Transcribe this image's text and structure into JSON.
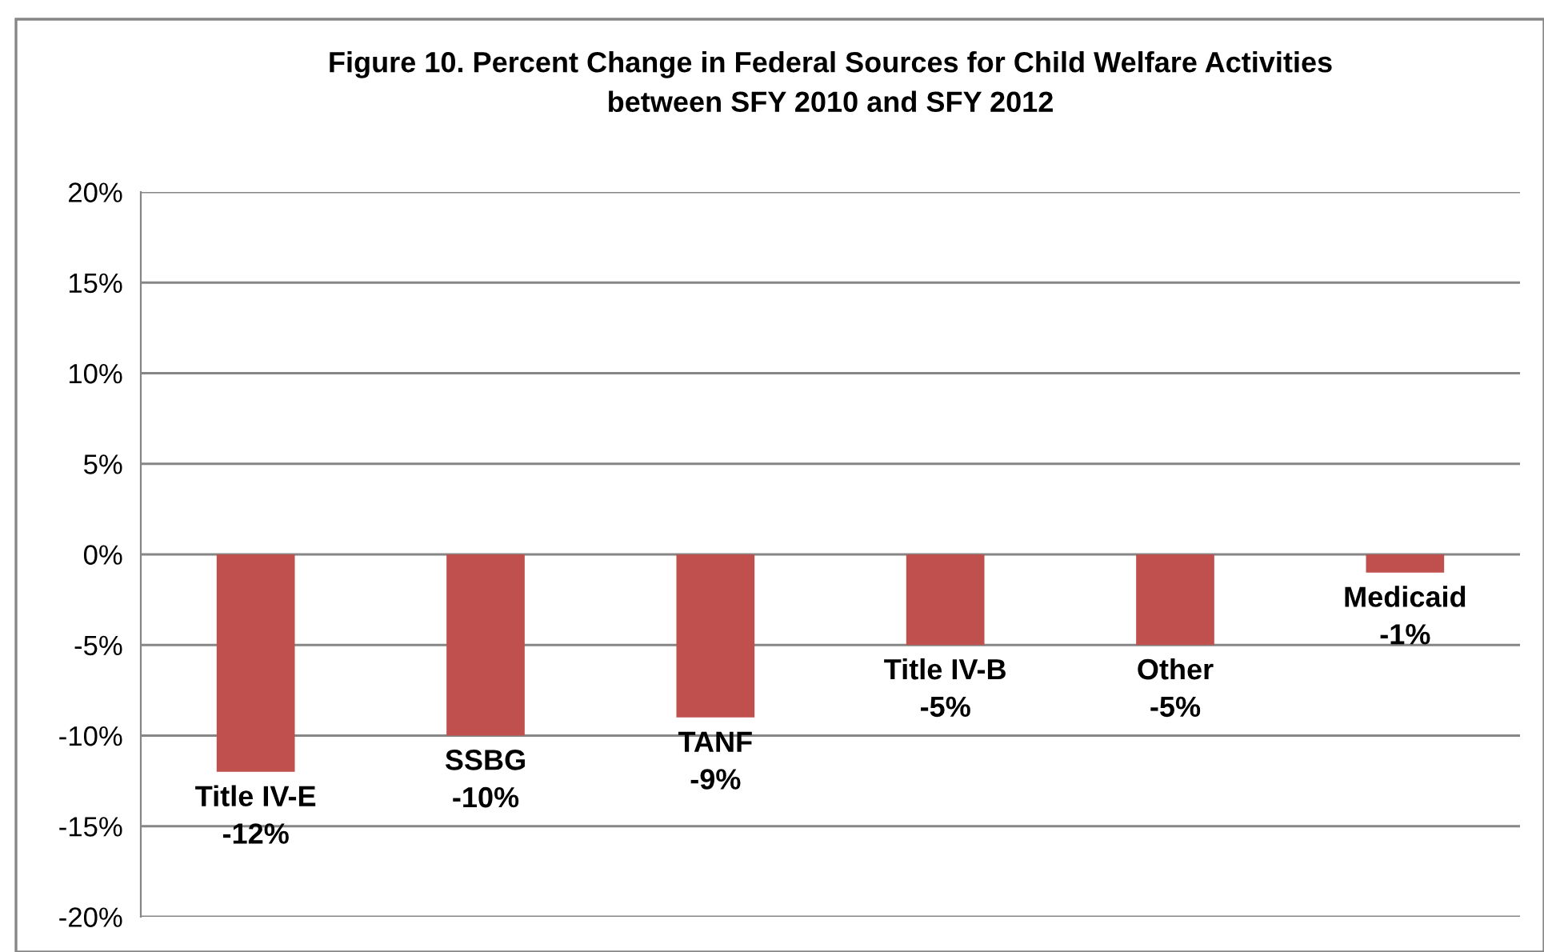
{
  "chart_data": {
    "type": "bar",
    "title": "Figure 10. Percent Change in Federal Sources for Child Welfare Activities\nbetween SFY 2010 and SFY 2012",
    "categories": [
      "Title IV-E",
      "SSBG",
      "TANF",
      "Title IV-B",
      "Other",
      "Medicaid"
    ],
    "values": [
      -12,
      -10,
      -9,
      -5,
      -5,
      -1
    ],
    "value_labels": [
      "-12%",
      "-10%",
      "-9%",
      "-5%",
      "-5%",
      "-1%"
    ],
    "color": "#c0504d",
    "ylim": [
      -20,
      20
    ],
    "yticks": [
      {
        "value": -20,
        "label": "-20%"
      },
      {
        "value": -15,
        "label": "-15%"
      },
      {
        "value": -10,
        "label": "-10%"
      },
      {
        "value": -5,
        "label": "-5%"
      },
      {
        "value": 0,
        "label": "0%"
      },
      {
        "value": 5,
        "label": "5%"
      },
      {
        "value": 10,
        "label": "10%"
      },
      {
        "value": 15,
        "label": "15%"
      },
      {
        "value": 20,
        "label": "20%"
      }
    ],
    "grid": "y",
    "tick_labels": "y"
  }
}
